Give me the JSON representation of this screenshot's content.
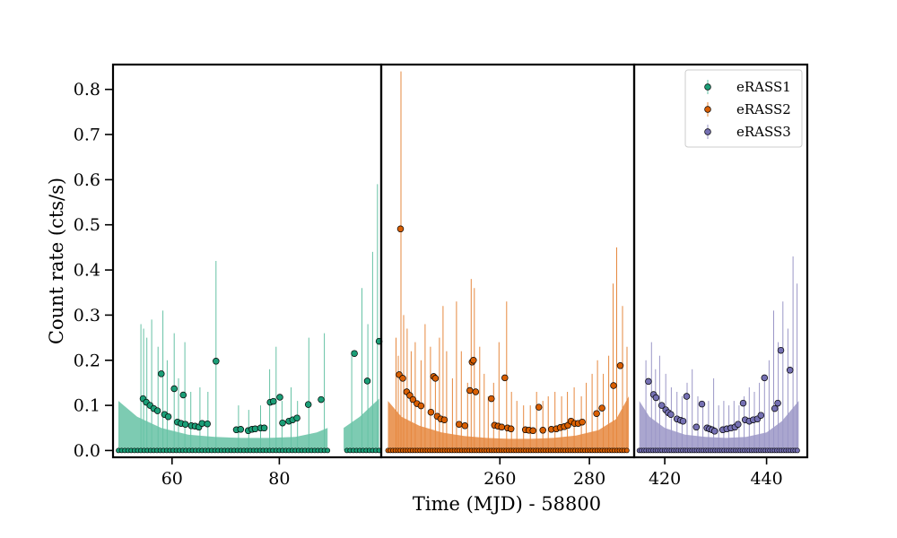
{
  "chart_data": {
    "type": "scatter",
    "title": "",
    "xlabel": "Time (MJD) - 58800",
    "ylabel": "Count rate (cts/s)",
    "ylim": [
      -0.015,
      0.855
    ],
    "yticks": [
      0.0,
      0.1,
      0.2,
      0.3,
      0.4,
      0.5,
      0.6,
      0.7,
      0.8
    ],
    "ytick_labels": [
      "0.0",
      "0.1",
      "0.2",
      "0.3",
      "0.4",
      "0.5",
      "0.6",
      "0.7",
      "0.8"
    ],
    "legend": {
      "position": "top-right",
      "entries": [
        "eRASS1",
        "eRASS2",
        "eRASS3"
      ]
    },
    "grid": false,
    "panels": [
      {
        "name": "eRASS1",
        "color": "#1b9e77",
        "band_color": "#66c2a5",
        "xlim": [
          49,
          99
        ],
        "xticks": [
          60,
          80
        ],
        "xtick_labels": [
          "60",
          "80"
        ],
        "gap": [
          89,
          92
        ],
        "band": {
          "x": [
            50,
            53.5,
            58,
            63,
            68,
            73,
            78,
            83,
            87,
            89,
            92,
            95,
            98.6
          ],
          "y": [
            0.11,
            0.075,
            0.05,
            0.035,
            0.03,
            0.028,
            0.028,
            0.03,
            0.04,
            0.05,
            0.05,
            0.075,
            0.115
          ]
        },
        "x_extent": [
          50,
          98.6
        ],
        "zero_step": 0.6,
        "spikes": [
          {
            "x": 54.2,
            "top": 0.28
          },
          {
            "x": 54.7,
            "top": 0.27
          },
          {
            "x": 55.3,
            "top": 0.25
          },
          {
            "x": 56.2,
            "top": 0.29
          },
          {
            "x": 57.4,
            "top": 0.23
          },
          {
            "x": 58.3,
            "top": 0.31
          },
          {
            "x": 59.1,
            "top": 0.2
          },
          {
            "x": 60.4,
            "top": 0.26
          },
          {
            "x": 61.2,
            "top": 0.16
          },
          {
            "x": 62.4,
            "top": 0.24
          },
          {
            "x": 63.5,
            "top": 0.13
          },
          {
            "x": 65.2,
            "top": 0.14
          },
          {
            "x": 66.7,
            "top": 0.13
          },
          {
            "x": 68.2,
            "top": 0.42
          },
          {
            "x": 72.4,
            "top": 0.1
          },
          {
            "x": 74.3,
            "top": 0.09
          },
          {
            "x": 76.5,
            "top": 0.1
          },
          {
            "x": 78.2,
            "top": 0.18
          },
          {
            "x": 79.4,
            "top": 0.23
          },
          {
            "x": 80.5,
            "top": 0.11
          },
          {
            "x": 82.2,
            "top": 0.14
          },
          {
            "x": 83.4,
            "top": 0.11
          },
          {
            "x": 85.5,
            "top": 0.25
          },
          {
            "x": 88.4,
            "top": 0.26
          },
          {
            "x": 93.5,
            "top": 0.22
          },
          {
            "x": 95.4,
            "top": 0.36
          },
          {
            "x": 96.5,
            "top": 0.28
          },
          {
            "x": 97.4,
            "top": 0.44
          },
          {
            "x": 98.3,
            "top": 0.59
          }
        ],
        "points": [
          [
            54.6,
            0.115
          ],
          [
            55.2,
            0.107
          ],
          [
            55.9,
            0.1
          ],
          [
            56.6,
            0.093
          ],
          [
            57.3,
            0.088
          ],
          [
            58.0,
            0.17
          ],
          [
            58.6,
            0.08
          ],
          [
            59.3,
            0.075
          ],
          [
            60.4,
            0.137
          ],
          [
            61.0,
            0.063
          ],
          [
            61.7,
            0.06
          ],
          [
            62.1,
            0.123
          ],
          [
            62.5,
            0.058
          ],
          [
            63.6,
            0.055
          ],
          [
            64.3,
            0.054
          ],
          [
            65.0,
            0.052
          ],
          [
            65.6,
            0.06
          ],
          [
            66.6,
            0.059
          ],
          [
            68.2,
            0.198
          ],
          [
            72.0,
            0.046
          ],
          [
            72.8,
            0.047
          ],
          [
            74.2,
            0.044
          ],
          [
            74.9,
            0.047
          ],
          [
            75.5,
            0.048
          ],
          [
            76.5,
            0.05
          ],
          [
            77.2,
            0.05
          ],
          [
            78.3,
            0.107
          ],
          [
            78.9,
            0.109
          ],
          [
            80.1,
            0.118
          ],
          [
            80.6,
            0.061
          ],
          [
            81.8,
            0.065
          ],
          [
            82.5,
            0.068
          ],
          [
            83.3,
            0.072
          ],
          [
            85.4,
            0.102
          ],
          [
            87.8,
            0.113
          ],
          [
            94.0,
            0.215
          ],
          [
            96.4,
            0.154
          ],
          [
            98.6,
            0.242
          ]
        ]
      },
      {
        "name": "eRASS2",
        "color": "#d95f02",
        "band_color": "#e6883f",
        "xlim": [
          233.5,
          290
        ],
        "xticks": [
          260,
          280
        ],
        "xtick_labels": [
          "260",
          "280"
        ],
        "gap": null,
        "band": {
          "x": [
            235,
            238,
            242,
            247,
            252,
            257,
            262,
            267,
            272,
            277,
            282,
            286,
            288.8
          ],
          "y": [
            0.11,
            0.075,
            0.055,
            0.04,
            0.032,
            0.028,
            0.026,
            0.026,
            0.028,
            0.033,
            0.045,
            0.07,
            0.12
          ]
        },
        "x_extent": [
          235,
          288.8
        ],
        "zero_step": 0.55,
        "spikes": [
          {
            "x": 236.8,
            "top": 0.25
          },
          {
            "x": 237.3,
            "top": 0.21
          },
          {
            "x": 237.9,
            "top": 0.84
          },
          {
            "x": 238.5,
            "top": 0.3
          },
          {
            "x": 239.3,
            "top": 0.27
          },
          {
            "x": 240.2,
            "top": 0.22
          },
          {
            "x": 241.1,
            "top": 0.24
          },
          {
            "x": 242.4,
            "top": 0.2
          },
          {
            "x": 243.3,
            "top": 0.28
          },
          {
            "x": 244.5,
            "top": 0.23
          },
          {
            "x": 245.6,
            "top": 0.17
          },
          {
            "x": 246.5,
            "top": 0.25
          },
          {
            "x": 247.3,
            "top": 0.32
          },
          {
            "x": 248.1,
            "top": 0.22
          },
          {
            "x": 249.4,
            "top": 0.16
          },
          {
            "x": 250.3,
            "top": 0.33
          },
          {
            "x": 251.4,
            "top": 0.22
          },
          {
            "x": 252.8,
            "top": 0.15
          },
          {
            "x": 253.6,
            "top": 0.38
          },
          {
            "x": 254.3,
            "top": 0.36
          },
          {
            "x": 255.5,
            "top": 0.23
          },
          {
            "x": 256.5,
            "top": 0.17
          },
          {
            "x": 257.4,
            "top": 0.12
          },
          {
            "x": 258.6,
            "top": 0.15
          },
          {
            "x": 259.8,
            "top": 0.24
          },
          {
            "x": 261.5,
            "top": 0.33
          },
          {
            "x": 262.6,
            "top": 0.13
          },
          {
            "x": 263.8,
            "top": 0.11
          },
          {
            "x": 265.3,
            "top": 0.1
          },
          {
            "x": 266.8,
            "top": 0.1
          },
          {
            "x": 268.2,
            "top": 0.13
          },
          {
            "x": 269.6,
            "top": 0.11
          },
          {
            "x": 270.8,
            "top": 0.12
          },
          {
            "x": 272.3,
            "top": 0.13
          },
          {
            "x": 273.8,
            "top": 0.12
          },
          {
            "x": 275.1,
            "top": 0.13
          },
          {
            "x": 276.6,
            "top": 0.14
          },
          {
            "x": 278.2,
            "top": 0.12
          },
          {
            "x": 279.3,
            "top": 0.15
          },
          {
            "x": 280.6,
            "top": 0.17
          },
          {
            "x": 281.8,
            "top": 0.2
          },
          {
            "x": 283.1,
            "top": 0.17
          },
          {
            "x": 284.3,
            "top": 0.21
          },
          {
            "x": 285.3,
            "top": 0.37
          },
          {
            "x": 286.1,
            "top": 0.45
          },
          {
            "x": 287.4,
            "top": 0.32
          },
          {
            "x": 288.4,
            "top": 0.23
          }
        ],
        "points": [
          [
            237.5,
            0.168
          ],
          [
            237.8,
            0.491
          ],
          [
            238.3,
            0.16
          ],
          [
            239.2,
            0.13
          ],
          [
            239.9,
            0.122
          ],
          [
            240.6,
            0.113
          ],
          [
            241.5,
            0.104
          ],
          [
            242.4,
            0.099
          ],
          [
            244.6,
            0.085
          ],
          [
            245.2,
            0.164
          ],
          [
            245.6,
            0.16
          ],
          [
            246.0,
            0.076
          ],
          [
            246.8,
            0.07
          ],
          [
            247.6,
            0.068
          ],
          [
            250.9,
            0.058
          ],
          [
            252.2,
            0.055
          ],
          [
            253.3,
            0.133
          ],
          [
            253.8,
            0.196
          ],
          [
            254.1,
            0.2
          ],
          [
            254.6,
            0.13
          ],
          [
            258.1,
            0.115
          ],
          [
            258.8,
            0.056
          ],
          [
            259.6,
            0.054
          ],
          [
            260.4,
            0.052
          ],
          [
            261.1,
            0.161
          ],
          [
            261.7,
            0.05
          ],
          [
            262.5,
            0.048
          ],
          [
            265.7,
            0.046
          ],
          [
            266.5,
            0.045
          ],
          [
            267.4,
            0.044
          ],
          [
            268.7,
            0.096
          ],
          [
            269.6,
            0.045
          ],
          [
            271.5,
            0.047
          ],
          [
            272.6,
            0.048
          ],
          [
            273.5,
            0.051
          ],
          [
            274.4,
            0.053
          ],
          [
            275.2,
            0.056
          ],
          [
            275.9,
            0.065
          ],
          [
            276.7,
            0.06
          ],
          [
            277.5,
            0.06
          ],
          [
            278.4,
            0.063
          ],
          [
            281.6,
            0.082
          ],
          [
            282.8,
            0.094
          ],
          [
            285.4,
            0.144
          ],
          [
            286.9,
            0.188
          ]
        ]
      },
      {
        "name": "eRASS3",
        "color": "#7570b3",
        "band_color": "#9b97c7",
        "xlim": [
          414,
          448
        ],
        "xticks": [
          420,
          440
        ],
        "xtick_labels": [
          "420",
          "440"
        ],
        "gap": null,
        "band": {
          "x": [
            415,
            417,
            420,
            424,
            428,
            432,
            436,
            440,
            443,
            446.3
          ],
          "y": [
            0.11,
            0.075,
            0.05,
            0.035,
            0.03,
            0.028,
            0.03,
            0.04,
            0.065,
            0.11
          ]
        },
        "x_extent": [
          415,
          446.3
        ],
        "zero_step": 0.45,
        "spikes": [
          {
            "x": 416.3,
            "top": 0.2
          },
          {
            "x": 417.4,
            "top": 0.24
          },
          {
            "x": 418.2,
            "top": 0.18
          },
          {
            "x": 419.0,
            "top": 0.21
          },
          {
            "x": 420.2,
            "top": 0.17
          },
          {
            "x": 421.3,
            "top": 0.14
          },
          {
            "x": 422.4,
            "top": 0.13
          },
          {
            "x": 423.4,
            "top": 0.12
          },
          {
            "x": 424.4,
            "top": 0.15
          },
          {
            "x": 425.4,
            "top": 0.18
          },
          {
            "x": 426.5,
            "top": 0.12
          },
          {
            "x": 427.5,
            "top": 0.1
          },
          {
            "x": 428.6,
            "top": 0.11
          },
          {
            "x": 429.6,
            "top": 0.16
          },
          {
            "x": 430.6,
            "top": 0.1
          },
          {
            "x": 431.6,
            "top": 0.11
          },
          {
            "x": 432.6,
            "top": 0.1
          },
          {
            "x": 433.6,
            "top": 0.11
          },
          {
            "x": 434.6,
            "top": 0.1
          },
          {
            "x": 435.6,
            "top": 0.12
          },
          {
            "x": 436.6,
            "top": 0.14
          },
          {
            "x": 437.6,
            "top": 0.13
          },
          {
            "x": 438.6,
            "top": 0.15
          },
          {
            "x": 439.6,
            "top": 0.16
          },
          {
            "x": 440.5,
            "top": 0.2
          },
          {
            "x": 441.4,
            "top": 0.31
          },
          {
            "x": 442.3,
            "top": 0.24
          },
          {
            "x": 443.2,
            "top": 0.33
          },
          {
            "x": 444.2,
            "top": 0.27
          },
          {
            "x": 445.2,
            "top": 0.43
          },
          {
            "x": 446.0,
            "top": 0.37
          }
        ],
        "points": [
          [
            416.8,
            0.153
          ],
          [
            417.8,
            0.124
          ],
          [
            418.3,
            0.117
          ],
          [
            419.4,
            0.1
          ],
          [
            420.2,
            0.09
          ],
          [
            420.7,
            0.084
          ],
          [
            421.2,
            0.08
          ],
          [
            422.4,
            0.07
          ],
          [
            423.1,
            0.067
          ],
          [
            423.6,
            0.065
          ],
          [
            424.3,
            0.12
          ],
          [
            426.2,
            0.052
          ],
          [
            427.3,
            0.103
          ],
          [
            428.3,
            0.05
          ],
          [
            428.8,
            0.048
          ],
          [
            429.3,
            0.046
          ],
          [
            429.8,
            0.043
          ],
          [
            431.4,
            0.046
          ],
          [
            432.2,
            0.048
          ],
          [
            433.0,
            0.05
          ],
          [
            433.8,
            0.052
          ],
          [
            434.4,
            0.058
          ],
          [
            435.4,
            0.105
          ],
          [
            435.8,
            0.068
          ],
          [
            436.6,
            0.065
          ],
          [
            437.4,
            0.068
          ],
          [
            438.2,
            0.07
          ],
          [
            438.9,
            0.078
          ],
          [
            439.6,
            0.161
          ],
          [
            441.6,
            0.093
          ],
          [
            442.2,
            0.105
          ],
          [
            442.8,
            0.222
          ],
          [
            444.6,
            0.178
          ]
        ]
      }
    ]
  }
}
